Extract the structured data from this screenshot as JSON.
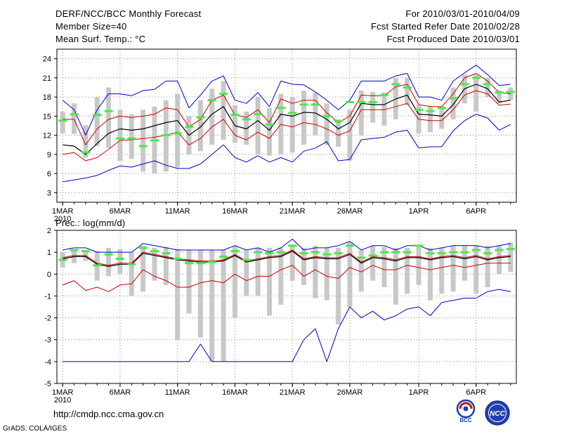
{
  "header": {
    "title": "DERF/NCC/BCC Monthly Forecast",
    "member_size": "Member Size=40",
    "period": "For 2010/03/01-2010/04/09",
    "started_refer": "Fcst Started Refer Date 2010/02/28",
    "produced": "Fcst Produced Date 2010/03/01"
  },
  "footer": {
    "url": "http://cmdp.ncc.cma.gov.cn",
    "credit": "GrADS: COLA/IGES",
    "logo_bcc_text": "BCC",
    "logo_ncc_text": "NCC"
  },
  "colors": {
    "envelope": "#0000cc",
    "spread": "#cc0000",
    "mean": "#000000",
    "bar": "#c8c8c8",
    "median": "#44ee44",
    "grid": "#888888"
  },
  "chart_data": [
    {
      "type": "line",
      "title": "Mean Surf. Temp.: °C",
      "ylabel": "°C",
      "ylim": [
        1.5,
        25.5
      ],
      "yticks": [
        3,
        6,
        9,
        12,
        15,
        18,
        21,
        24
      ],
      "xlim": [
        0.5,
        40.5
      ],
      "xticks": [
        {
          "day": 1,
          "label": "1MAR"
        },
        {
          "day": 6,
          "label": "6MAR"
        },
        {
          "day": 11,
          "label": "11MAR"
        },
        {
          "day": 16,
          "label": "16MAR"
        },
        {
          "day": 21,
          "label": "21MAR"
        },
        {
          "day": 26,
          "label": "26MAR"
        },
        {
          "day": 32,
          "label": "1APR"
        },
        {
          "day": 37,
          "label": "6APR"
        }
      ],
      "xtick_sublabel": "2010",
      "series": [
        {
          "name": "ensemble max",
          "color": "#0000cc",
          "values": [
            17.5,
            16.0,
            12.0,
            16.0,
            18.5,
            18.5,
            18.2,
            19.0,
            19.2,
            20.5,
            20.5,
            16.3,
            18.3,
            20.5,
            21.3,
            17.5,
            17.0,
            18.7,
            16.5,
            20.5,
            20.0,
            19.9,
            18.8,
            17.5,
            16.0,
            17.5,
            20.5,
            20.5,
            20.5,
            21.3,
            21.7,
            18.0,
            18.0,
            17.5,
            20.5,
            21.8,
            23.0,
            21.5,
            19.8,
            20.0
          ]
        },
        {
          "name": "mean + spread",
          "color": "#cc0000",
          "values": [
            14.5,
            14.5,
            10.5,
            13.0,
            14.5,
            15.0,
            14.8,
            15.0,
            15.3,
            16.3,
            16.0,
            13.3,
            14.5,
            17.5,
            18.3,
            15.2,
            14.8,
            16.0,
            14.0,
            17.7,
            17.0,
            17.5,
            17.5,
            15.5,
            14.0,
            15.0,
            18.3,
            18.2,
            18.2,
            19.6,
            20.0,
            16.8,
            16.5,
            16.5,
            18.5,
            21.0,
            21.7,
            20.5,
            18.7,
            18.5
          ]
        },
        {
          "name": "ensemble mean",
          "color": "#000000",
          "values": [
            10.5,
            10.3,
            9.0,
            10.7,
            12.3,
            13.0,
            12.8,
            13.0,
            13.5,
            14.0,
            14.3,
            12.0,
            13.3,
            15.3,
            16.5,
            13.5,
            13.0,
            14.3,
            12.8,
            15.3,
            15.0,
            15.6,
            15.5,
            14.5,
            13.0,
            14.0,
            17.0,
            16.8,
            16.8,
            17.7,
            18.3,
            15.3,
            15.2,
            15.0,
            16.8,
            19.3,
            20.0,
            19.3,
            17.2,
            17.5
          ]
        },
        {
          "name": "mean - spread",
          "color": "#cc0000",
          "values": [
            9.0,
            9.3,
            8.0,
            8.5,
            9.8,
            11.2,
            11.3,
            11.5,
            11.7,
            12.0,
            12.5,
            10.5,
            11.5,
            13.3,
            14.5,
            12.0,
            11.3,
            12.5,
            11.5,
            13.7,
            13.3,
            14.0,
            13.7,
            13.0,
            12.0,
            12.7,
            16.0,
            16.0,
            16.0,
            16.5,
            17.0,
            14.5,
            14.3,
            14.3,
            16.0,
            18.3,
            19.0,
            18.5,
            16.7,
            16.9
          ]
        },
        {
          "name": "ensemble min",
          "color": "#0000cc",
          "values": [
            4.7,
            5.0,
            5.3,
            5.7,
            6.5,
            7.2,
            7.0,
            7.5,
            8.0,
            7.3,
            6.8,
            6.8,
            7.5,
            9.0,
            10.5,
            8.5,
            7.8,
            8.8,
            7.8,
            8.5,
            7.8,
            9.5,
            10.0,
            11.0,
            8.0,
            8.2,
            11.3,
            11.5,
            11.7,
            12.5,
            12.8,
            10.0,
            10.2,
            10.2,
            12.7,
            14.3,
            15.3,
            14.7,
            12.8,
            13.7
          ]
        },
        {
          "name": "box top",
          "color": "#c8c8c8",
          "values": [
            15.7,
            17.0,
            13.6,
            18.0,
            19.5,
            16.0,
            15.3,
            16.0,
            16.5,
            17.5,
            18.5,
            15.0,
            17.5,
            19.3,
            20.5,
            16.7,
            15.7,
            18.0,
            16.3,
            18.5,
            18.0,
            19.0,
            18.7,
            17.0,
            14.5,
            16.0,
            19.0,
            18.8,
            18.7,
            21.0,
            21.0,
            16.8,
            16.5,
            16.5,
            19.5,
            21.5,
            21.5,
            21.0,
            19.0,
            19.5
          ]
        },
        {
          "name": "box bottom",
          "color": "#c8c8c8",
          "values": [
            12.3,
            12.2,
            8.5,
            10.3,
            10.0,
            8.0,
            8.3,
            6.3,
            6.0,
            6.3,
            7.0,
            9.0,
            9.5,
            10.5,
            11.3,
            10.8,
            10.5,
            9.0,
            8.8,
            9.0,
            9.3,
            10.5,
            12.0,
            10.5,
            10.2,
            8.0,
            12.0,
            14.0,
            13.5,
            14.5,
            16.7,
            12.3,
            12.5,
            13.0,
            14.5,
            17.0,
            15.7,
            18.0,
            17.0,
            17.5
          ]
        },
        {
          "name": "median",
          "color": "#44ee44",
          "values": [
            14.3,
            15.3,
            9.3,
            15.2,
            15.8,
            11.5,
            11.5,
            10.3,
            11.2,
            12.0,
            12.3,
            13.3,
            14.8,
            17.5,
            18.5,
            15.2,
            14.5,
            15.3,
            13.7,
            16.3,
            15.5,
            16.8,
            16.8,
            15.0,
            14.2,
            17.2,
            17.2,
            17.2,
            18.3,
            20.0,
            19.5,
            16.0,
            15.8,
            16.3,
            17.8,
            20.0,
            21.0,
            20.0,
            18.7,
            18.8
          ]
        }
      ]
    },
    {
      "type": "line",
      "title": "Prec.: log(mm/d)",
      "ylabel": "log(mm/d)",
      "ylim": [
        -5,
        2
      ],
      "yticks": [
        -5,
        -4,
        -3,
        -2,
        -1,
        0,
        1,
        2
      ],
      "xlim": [
        0.5,
        40.5
      ],
      "xticks": [
        {
          "day": 1,
          "label": "1MAR"
        },
        {
          "day": 6,
          "label": "6MAR"
        },
        {
          "day": 11,
          "label": "11MAR"
        },
        {
          "day": 16,
          "label": "16MAR"
        },
        {
          "day": 21,
          "label": "21MAR"
        },
        {
          "day": 26,
          "label": "26MAR"
        },
        {
          "day": 32,
          "label": "1APR"
        },
        {
          "day": 37,
          "label": "6APR"
        }
      ],
      "xtick_sublabel": "2010",
      "series": [
        {
          "name": "ensemble max",
          "color": "#0000cc",
          "values": [
            1.1,
            1.2,
            1.2,
            1.0,
            1.0,
            1.0,
            1.0,
            1.4,
            1.3,
            1.2,
            1.1,
            1.1,
            1.1,
            1.1,
            1.1,
            1.3,
            1.1,
            1.2,
            1.0,
            1.2,
            1.6,
            1.1,
            1.2,
            1.2,
            1.3,
            1.5,
            1.1,
            1.3,
            1.3,
            1.1,
            1.3,
            1.3,
            1.1,
            1.2,
            1.3,
            1.3,
            1.3,
            1.2,
            1.3,
            1.4
          ]
        },
        {
          "name": "mean + spread",
          "color": "#cc0000",
          "values": [
            0.75,
            0.85,
            0.85,
            0.5,
            0.4,
            0.5,
            0.5,
            1.0,
            0.9,
            0.8,
            0.7,
            0.65,
            0.6,
            0.6,
            0.65,
            0.9,
            0.6,
            0.7,
            0.8,
            0.85,
            1.1,
            0.7,
            0.8,
            0.75,
            0.75,
            0.95,
            0.55,
            0.8,
            0.75,
            0.65,
            0.8,
            0.8,
            0.7,
            0.8,
            0.85,
            0.75,
            0.85,
            0.7,
            0.8,
            0.85
          ]
        },
        {
          "name": "ensemble mean",
          "color": "#000000",
          "values": [
            0.7,
            0.8,
            0.8,
            0.45,
            0.35,
            0.45,
            0.45,
            0.95,
            0.85,
            0.75,
            0.65,
            0.6,
            0.55,
            0.55,
            0.6,
            0.85,
            0.55,
            0.65,
            0.75,
            0.8,
            1.05,
            0.65,
            0.75,
            0.7,
            0.7,
            0.9,
            0.5,
            0.75,
            0.7,
            0.6,
            0.75,
            0.75,
            0.65,
            0.75,
            0.8,
            0.7,
            0.8,
            0.65,
            0.75,
            0.8
          ]
        },
        {
          "name": "mean - spread",
          "color": "#cc0000",
          "values": [
            -0.5,
            -0.3,
            -0.75,
            -0.6,
            -0.8,
            -0.5,
            -0.45,
            0.2,
            -0.1,
            -0.3,
            -0.6,
            -0.6,
            -0.4,
            -0.3,
            -0.4,
            0.0,
            -0.3,
            -0.1,
            -0.1,
            0.2,
            0.4,
            -0.1,
            0.2,
            -0.1,
            -0.2,
            0.3,
            0.1,
            0.4,
            0.2,
            0.2,
            0.4,
            0.3,
            0.2,
            0.3,
            0.4,
            0.3,
            0.4,
            0.5,
            0.5,
            0.5
          ]
        },
        {
          "name": "ensemble min",
          "color": "#0000cc",
          "values": [
            -4.0,
            -4.0,
            -4.0,
            -4.0,
            -4.0,
            -4.0,
            -4.0,
            -4.0,
            -4.0,
            -4.0,
            -4.0,
            -4.0,
            -3.2,
            -4.0,
            -4.0,
            -4.0,
            -4.0,
            -4.0,
            -4.0,
            -4.0,
            -4.0,
            -3.0,
            -2.5,
            -4.0,
            -2.5,
            -1.5,
            -2.0,
            -1.7,
            -2.1,
            -1.9,
            -1.6,
            -1.5,
            -1.9,
            -1.3,
            -1.2,
            -1.1,
            -1.1,
            -0.8,
            -0.7,
            -0.8
          ]
        },
        {
          "name": "box top",
          "color": "#c8c8c8",
          "values": [
            1.0,
            1.15,
            1.1,
            1.05,
            1.2,
            1.15,
            1.0,
            1.3,
            1.2,
            1.25,
            1.15,
            1.1,
            1.1,
            1.1,
            1.1,
            1.3,
            1.1,
            1.2,
            1.2,
            1.2,
            1.3,
            1.2,
            1.3,
            1.2,
            1.2,
            1.45,
            1.1,
            1.3,
            1.25,
            1.2,
            1.2,
            1.25,
            1.2,
            1.2,
            1.3,
            1.3,
            1.3,
            1.3,
            1.3,
            1.45
          ]
        },
        {
          "name": "box bottom",
          "color": "#c8c8c8",
          "values": [
            0.3,
            0.5,
            0.6,
            -0.3,
            -0.1,
            0.0,
            -1.0,
            -0.8,
            -0.3,
            -0.5,
            -3.0,
            -1.8,
            -2.9,
            -4.0,
            -4.0,
            -2.0,
            -1.0,
            -1.0,
            -1.9,
            -1.4,
            -0.3,
            -0.5,
            -1.1,
            -1.2,
            -2.3,
            -1.5,
            -0.8,
            -0.3,
            -0.6,
            -1.4,
            -0.9,
            -0.5,
            -1.2,
            -0.9,
            -0.8,
            -0.3,
            -0.9,
            -0.6,
            0.0,
            0.1
          ]
        },
        {
          "name": "median",
          "color": "#44ee44",
          "values": [
            0.65,
            1.1,
            1.05,
            0.4,
            0.9,
            0.7,
            0.45,
            1.2,
            1.05,
            0.95,
            0.7,
            0.5,
            0.5,
            0.55,
            0.8,
            1.05,
            0.65,
            1.0,
            0.95,
            1.0,
            1.3,
            0.95,
            1.0,
            0.9,
            0.95,
            1.3,
            0.75,
            0.85,
            1.0,
            1.0,
            1.0,
            1.3,
            0.95,
            0.95,
            1.0,
            1.0,
            1.1,
            0.95,
            1.1,
            1.15
          ]
        }
      ]
    }
  ]
}
